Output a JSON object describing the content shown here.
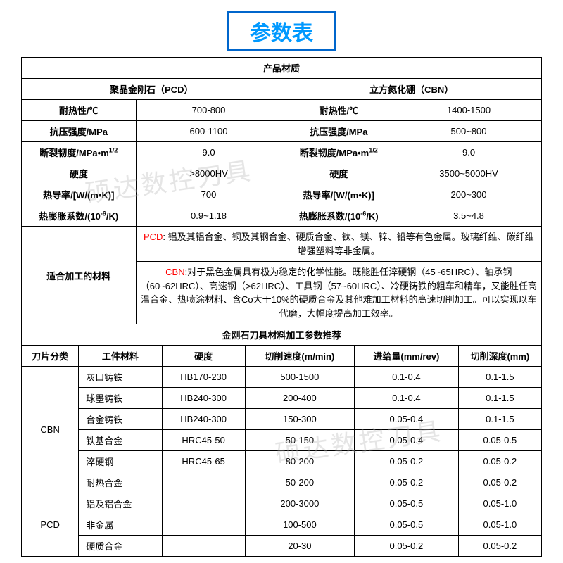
{
  "title": "参数表",
  "section1_header": "产品材质",
  "pcd_header": "聚晶金刚石（PCD）",
  "cbn_header": "立方氮化硼（CBN）",
  "props": {
    "heat_label": "耐热性/℃",
    "heat_pcd": "700-800",
    "heat_cbn": "1400-1500",
    "compress_label": "抗压强度/MPa",
    "compress_pcd": "600-1100",
    "compress_cbn": "500~800",
    "fracture_label_pre": "断裂韧度/MPa•m",
    "fracture_label_sup": "1/2",
    "fracture_pcd": "9.0",
    "fracture_cbn": "9.0",
    "hardness_label": "硬度",
    "hardness_pcd": ">8000HV",
    "hardness_cbn": "3500~5000HV",
    "thermal_label": "热导率/[W/(m•K)]",
    "thermal_pcd": "700",
    "thermal_cbn": "200~300",
    "expand_label_pre": "热膨胀系数/(10",
    "expand_label_sup": "-6",
    "expand_label_post": "/K)",
    "expand_pcd": "0.9~1.18",
    "expand_cbn": "3.5~4.8"
  },
  "suitable_label": "适合加工的材料",
  "pcd_desc_label": "PCD",
  "pcd_desc": ": 铝及其铝合金、铜及其钢合金、硬质合金、钛、镁、锌、铅等有色金属。玻璃纤维、碳纤维增强塑料等非金属。",
  "cbn_desc_label": "CBN",
  "cbn_desc": ":对于黑色金属具有极为稳定的化学性能。既能胜任淬硬钢（45~65HRC）、轴承钢（60~62HRC）、高速钢（>62HRC）、工具钢（57~60HRC）、冷硬铸铁的粗车和精车，又能胜任高温合金、热喷涂材料、含Co大于10%的硬质合金及其他难加工材料的高速切削加工。可以实现以车代磨，大幅度提高加工效率。",
  "section2_header": "金刚石刀具材料加工参数推荐",
  "cols": {
    "c1": "刀片分类",
    "c2": "工件材料",
    "c3": "硬度",
    "c4": "切削速度(m/min)",
    "c5": "进给量(mm/rev)",
    "c6": "切削深度(mm)"
  },
  "rows": [
    {
      "cat": "CBN",
      "mat": "灰口铸铁",
      "hard": "HB170-230",
      "speed": "500-1500",
      "feed": "0.1-0.4",
      "depth": "0.1-1.5"
    },
    {
      "cat": "",
      "mat": "球墨铸铁",
      "hard": "HB240-300",
      "speed": "200-400",
      "feed": "0.1-0.4",
      "depth": "0.1-1.5"
    },
    {
      "cat": "",
      "mat": "合金铸铁",
      "hard": "HB240-300",
      "speed": "150-300",
      "feed": "0.05-0.4",
      "depth": "0.1-1.5"
    },
    {
      "cat": "",
      "mat": "铁基合金",
      "hard": "HRC45-50",
      "speed": "50-150",
      "feed": "0.05-0.4",
      "depth": "0.05-0.5"
    },
    {
      "cat": "",
      "mat": "淬硬钢",
      "hard": "HRC45-65",
      "speed": "80-200",
      "feed": "0.05-0.2",
      "depth": "0.05-0.2"
    },
    {
      "cat": "",
      "mat": "耐热合金",
      "hard": "",
      "speed": "50-200",
      "feed": "0.05-0.2",
      "depth": "0.05-0.2"
    },
    {
      "cat": "PCD",
      "mat": "铝及铝合金",
      "hard": "",
      "speed": "200-3000",
      "feed": "0.05-0.5",
      "depth": "0.05-1.0"
    },
    {
      "cat": "",
      "mat": "非金属",
      "hard": "",
      "speed": "100-500",
      "feed": "0.05-0.5",
      "depth": "0.05-1.0"
    },
    {
      "cat": "",
      "mat": "硬质合金",
      "hard": "",
      "speed": "20-30",
      "feed": "0.05-0.2",
      "depth": "0.05-0.2"
    }
  ],
  "watermark": "硕达数控刀具"
}
